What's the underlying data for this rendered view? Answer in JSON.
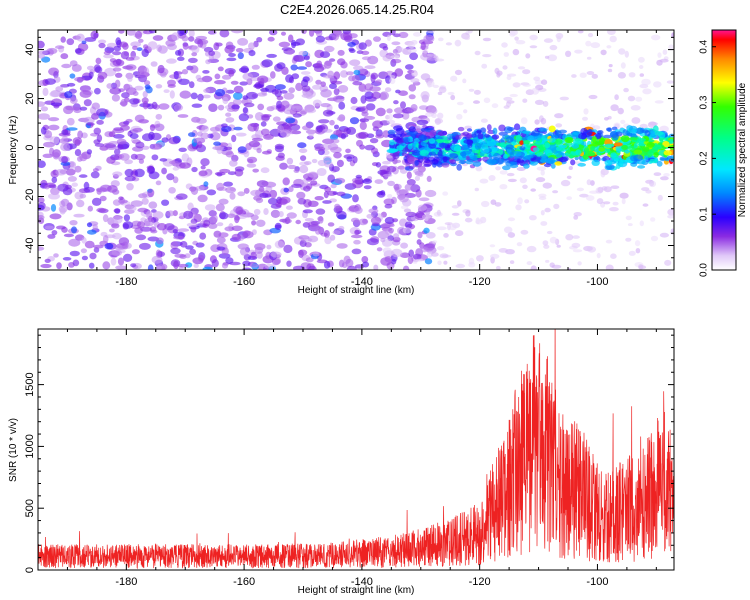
{
  "figure": {
    "title": "C2E4.2026.065.14.25.R04"
  },
  "chart_data": [
    {
      "type": "heatmap",
      "title": "C2E4.2026.065.14.25.R04",
      "xlabel": "Height of straight line (km)",
      "ylabel": "Frequency (Hz)",
      "xlim": [
        -195,
        -87
      ],
      "ylim": [
        -50,
        48
      ],
      "xticks": [
        -180,
        -160,
        -140,
        -120,
        -100
      ],
      "yticks": [
        -40,
        -20,
        0,
        20,
        40
      ],
      "colorbar": {
        "label": "Normalized spectral amplitude",
        "range": [
          0.0,
          0.43
        ],
        "ticks": [
          "0.0",
          "0.1",
          "0.2",
          "0.3",
          "0.4"
        ],
        "colormap": "rainbow",
        "placement": "right"
      },
      "description_values": {
        "noise_region_x": [
          -195,
          -128
        ],
        "signal_band_x": [
          -135,
          -87
        ],
        "signal_band_frequency_center": 0,
        "signal_band_halfwidth": 8,
        "peak_amplitude": 0.43
      }
    },
    {
      "type": "line",
      "xlabel": "Height of straight line (km)",
      "ylabel": "SNR (10 * v/v)",
      "xlim": [
        -195,
        -87
      ],
      "ylim": [
        0,
        1950
      ],
      "xticks": [
        -180,
        -160,
        -140,
        -120,
        -100
      ],
      "yticks": [
        0,
        500,
        1000,
        1500
      ],
      "series": [
        {
          "color": "#ee2222",
          "x": [
            -195,
            -185,
            -175,
            -165,
            -155,
            -145,
            -135,
            -130,
            -125,
            -120,
            -117,
            -115,
            -113,
            -111,
            -109,
            -107,
            -105,
            -103,
            -101,
            -99,
            -97,
            -95,
            -93,
            -91,
            -89,
            -87
          ],
          "y": [
            150,
            150,
            150,
            150,
            150,
            160,
            200,
            240,
            300,
            400,
            700,
            900,
            1200,
            1400,
            1300,
            1100,
            900,
            850,
            700,
            550,
            600,
            700,
            650,
            800,
            1100,
            700
          ]
        }
      ]
    }
  ],
  "colors": {
    "line": "#ee2222",
    "axis": "#000000"
  }
}
